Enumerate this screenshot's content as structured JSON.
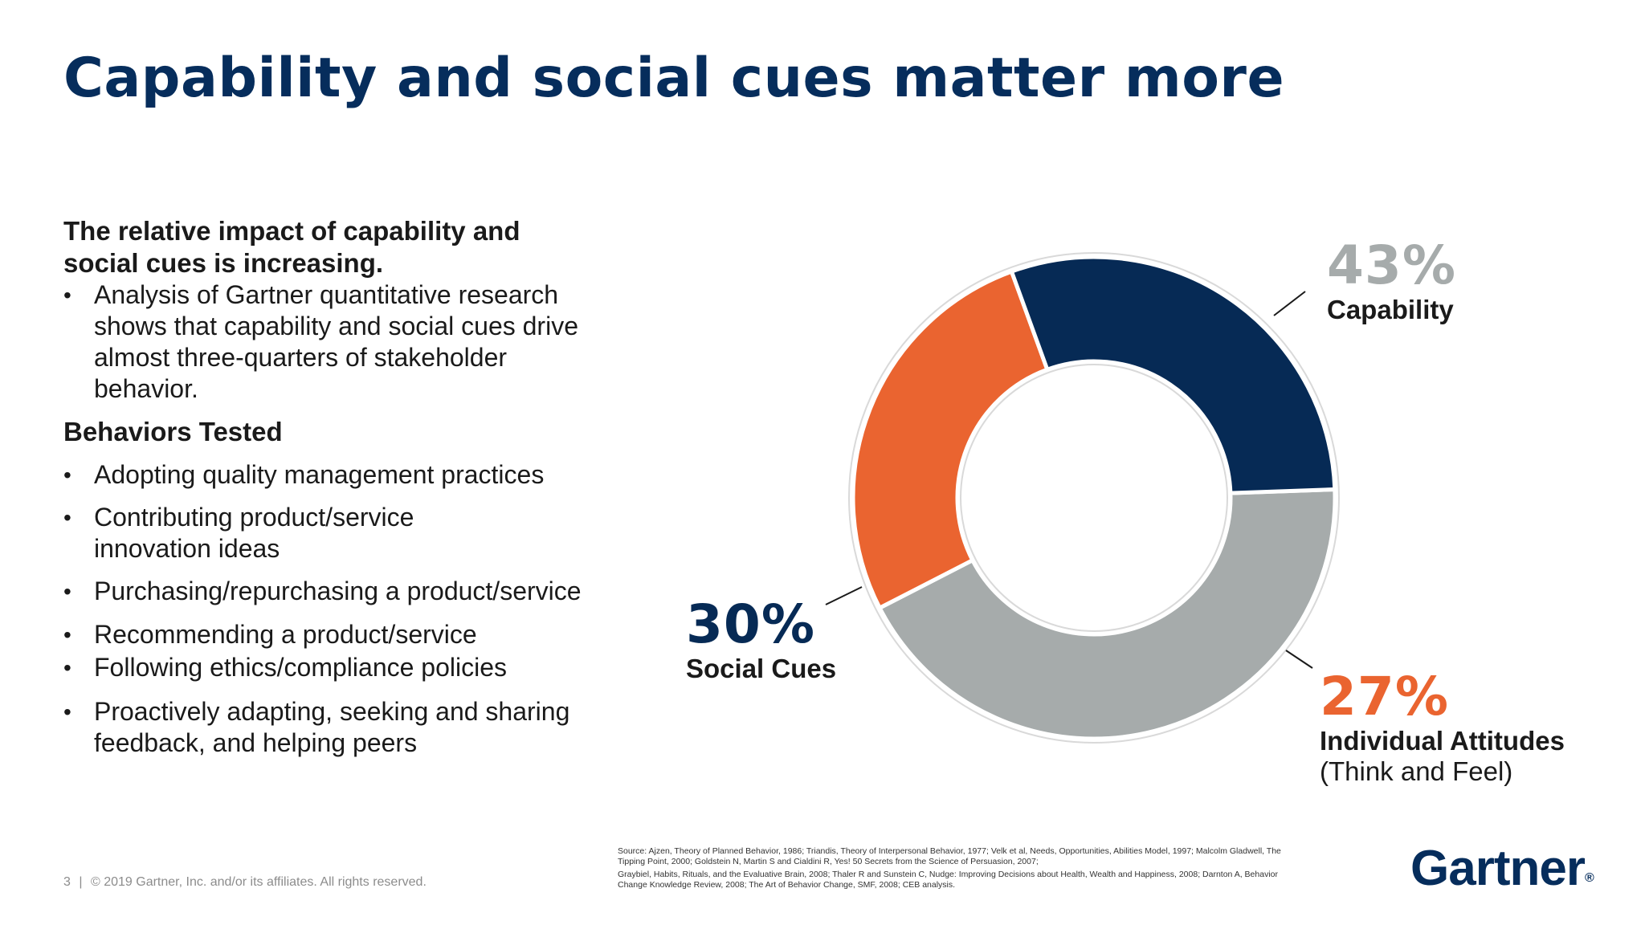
{
  "slide": {
    "title": "Capability and social cues matter more",
    "subhead": "The relative impact of capability and social cues is increasing.",
    "intro_bullet": "Analysis of Gartner quantitative research shows that capability and social cues drive almost three-quarters of stakeholder behavior.",
    "behaviors_heading": "Behaviors Tested",
    "behaviors": [
      "Adopting quality management practices",
      "Contributing product/service innovation ideas",
      "Purchasing/repurchasing a product/service",
      "Recommending a product/service",
      "Following ethics/compliance policies",
      "Proactively adapting, seeking and sharing feedback, and helping peers"
    ],
    "footer": {
      "page_number": "3",
      "separator": "|",
      "copyright": "© 2019 Gartner, Inc. and/or its affiliates. All rights reserved."
    },
    "source_lines": [
      "Source: Ajzen, Theory of Planned Behavior, 1986; Triandis, Theory of Interpersonal Behavior, 1977; Velk et al, Needs, Opportunities, Abilities Model, 1997; Malcolm Gladwell, The Tipping Point, 2000; Goldstein N, Martin S and Cialdini R, Yes! 50 Secrets from the Science of Persuasion, 2007;",
      "Graybiel, Habits, Rituals, and the Evaluative Brain, 2008; Thaler R and Sunstein C, Nudge: Improving Decisions about Health, Wealth and Happiness, 2008; Darnton A, Behavior Change Knowledge Review, 2008; The Art of Behavior Change, SMF, 2008; CEB analysis."
    ],
    "logo": {
      "text": "Gartner",
      "mark": "®"
    }
  },
  "chart_data": {
    "type": "pie",
    "donut": true,
    "slices": [
      {
        "label": "Capability",
        "value": 43,
        "display": "43%",
        "color": "#a6abab"
      },
      {
        "label": "Individual Attitudes",
        "sublabel": "(Think and Feel)",
        "value": 27,
        "display": "27%",
        "color": "#ea6430"
      },
      {
        "label": "Social Cues",
        "value": 30,
        "display": "30%",
        "color": "#062a55"
      }
    ]
  }
}
